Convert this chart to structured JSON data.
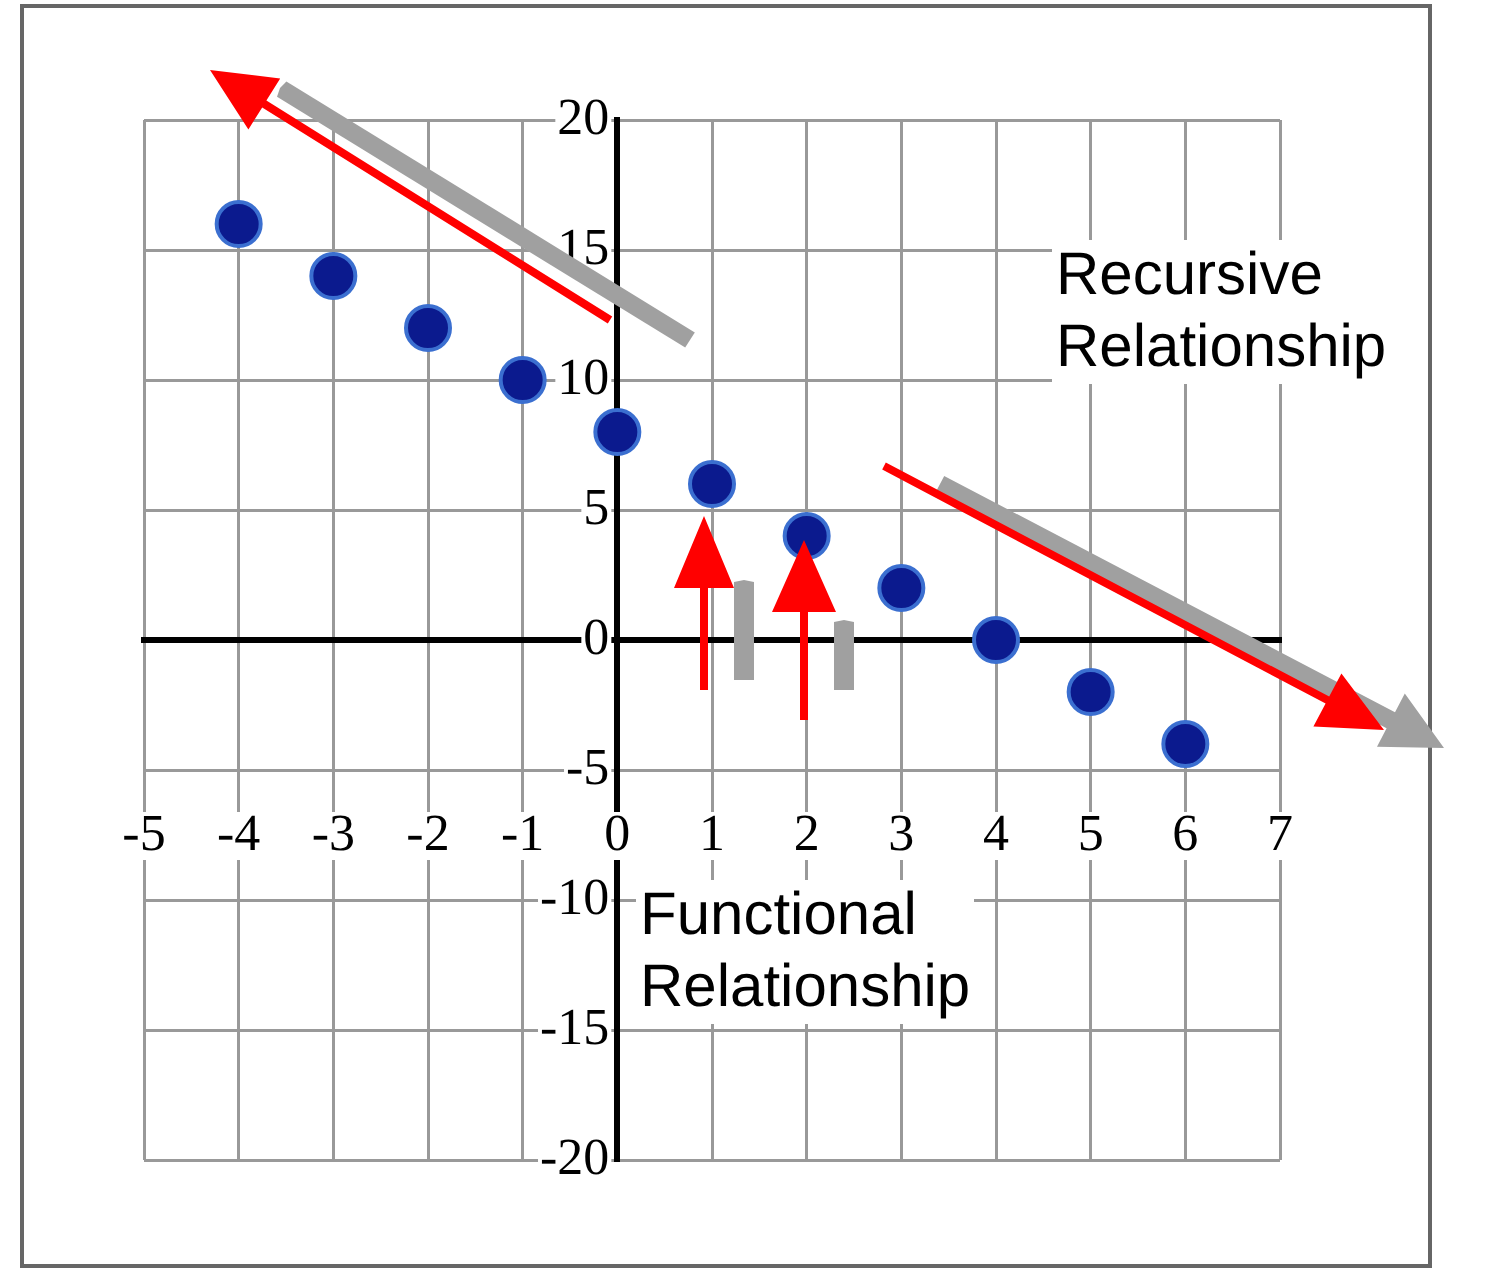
{
  "chart_data": {
    "type": "scatter",
    "x": [
      -4,
      -3,
      -2,
      -1,
      0,
      1,
      2,
      3,
      4,
      5,
      6
    ],
    "series": [
      {
        "color": "#0b1a8e",
        "values": [
          16,
          14,
          12,
          10,
          8,
          6,
          4,
          2,
          0,
          -2,
          -4
        ]
      }
    ],
    "xlim": [
      -5,
      7
    ],
    "xticks": [
      -5,
      -4,
      -3,
      -2,
      -1,
      0,
      1,
      2,
      3,
      4,
      5,
      6,
      7
    ],
    "ylim": [
      -20,
      20
    ],
    "yticks": [
      -20,
      -15,
      -10,
      -5,
      0,
      5,
      10,
      15,
      20
    ],
    "grid": true,
    "legend": false,
    "marker": "circle",
    "annotations": [
      "Recursive Relationship",
      "Functional Relationship"
    ]
  }
}
